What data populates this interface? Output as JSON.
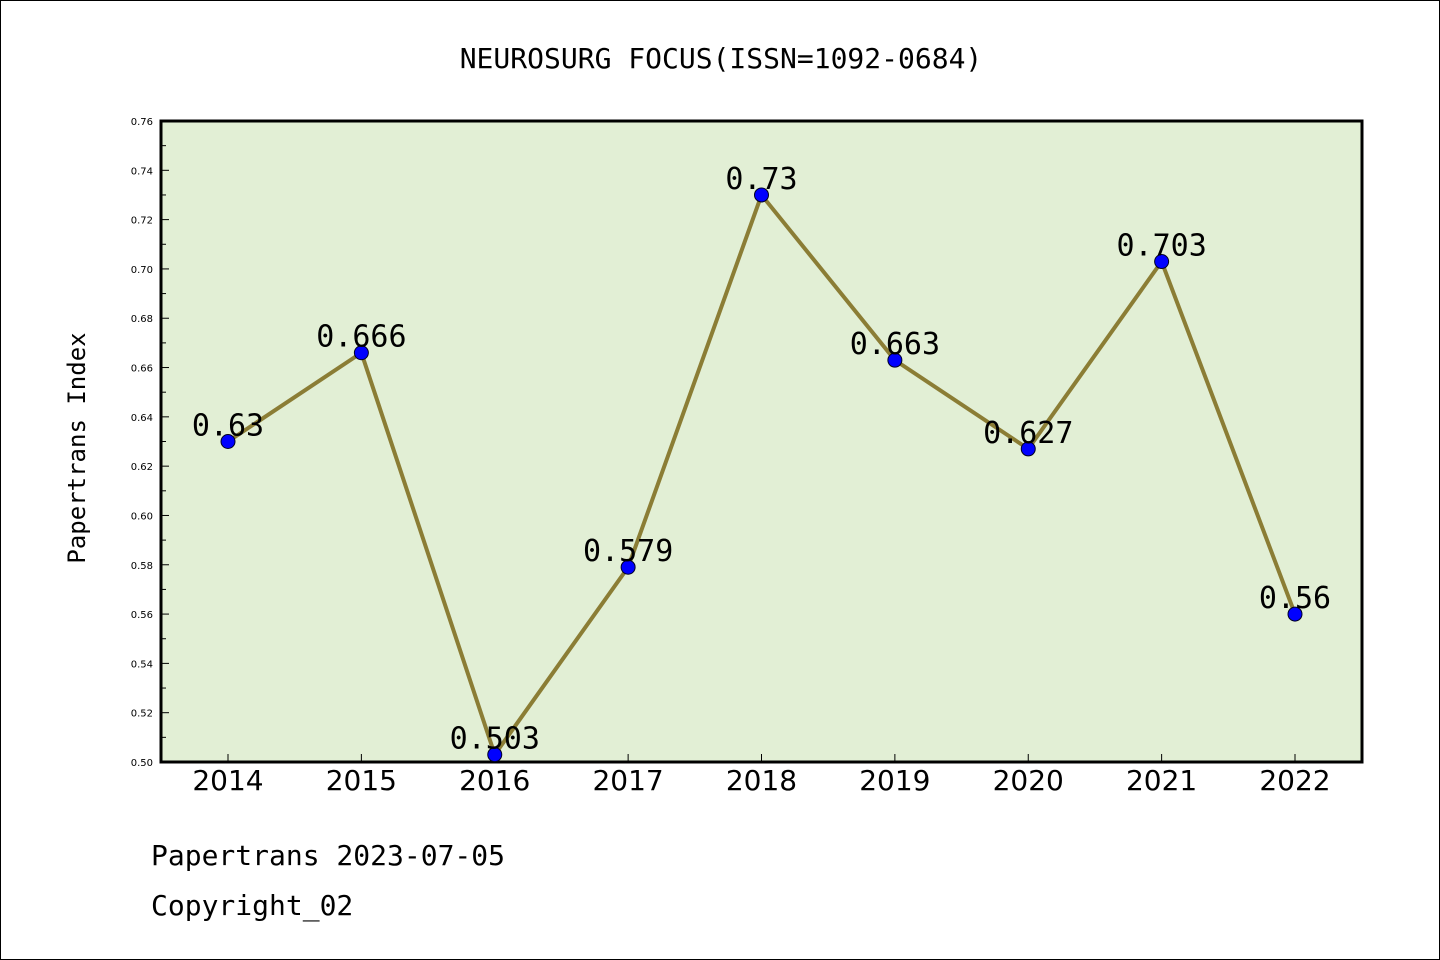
{
  "chart_data": {
    "type": "line",
    "title": "NEUROSURG FOCUS(ISSN=1092-0684)",
    "ylabel": "Papertrans Index",
    "xlabel": "",
    "categories": [
      "2014",
      "2015",
      "2016",
      "2017",
      "2018",
      "2019",
      "2020",
      "2021",
      "2022"
    ],
    "series": [
      {
        "values": [
          0.63,
          0.666,
          0.503,
          0.579,
          0.73,
          0.663,
          0.627,
          0.703,
          0.56
        ],
        "labels": [
          "0.63",
          "0.666",
          "0.503",
          "0.579",
          "0.73",
          "0.663",
          "0.627",
          "0.703",
          "0.56"
        ]
      }
    ],
    "ylim": [
      0.5,
      0.76
    ],
    "yticks": [
      "0.50",
      "0.52",
      "0.54",
      "0.56",
      "0.58",
      "0.60",
      "0.62",
      "0.64",
      "0.66",
      "0.68",
      "0.70",
      "0.72",
      "0.74",
      "0.76"
    ],
    "grid": false,
    "legend": "none"
  },
  "footer": {
    "line1": "Papertrans 2023-07-05",
    "line2": "Copyright_02"
  },
  "colors": {
    "plot_background": "#e2efd5",
    "line": "#8b7d35",
    "marker": "#0000ff",
    "frame": "#000000"
  }
}
